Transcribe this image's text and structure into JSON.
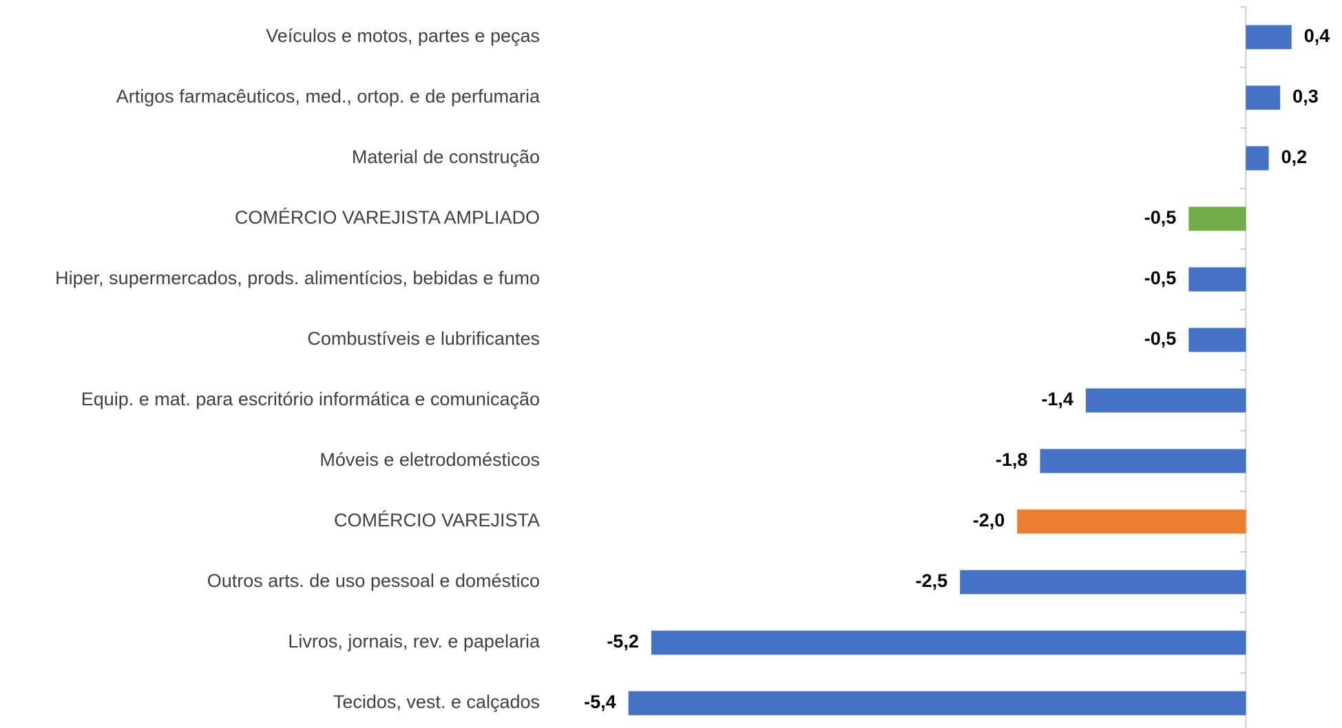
{
  "chart_data": {
    "type": "barh",
    "categories": [
      "Veículos e motos, partes e peças",
      "Artigos farmacêuticos, med., ortop. e de perfumaria",
      "Material de construção",
      "COMÉRCIO VAREJISTA AMPLIADO",
      "Hiper, supermercados, prods.  alimentícios, bebidas e fumo",
      "Combustíveis e lubrificantes",
      "Equip. e mat. para escritório informática e comunicação",
      "Móveis e eletrodomésticos",
      "COMÉRCIO VAREJISTA",
      "Outros arts. de uso pessoal e doméstico",
      "Livros, jornais, rev. e papelaria",
      "Tecidos, vest. e calçados"
    ],
    "values": [
      0.4,
      0.3,
      0.2,
      -0.5,
      -0.5,
      -0.5,
      -1.4,
      -1.8,
      -2.0,
      -2.5,
      -5.2,
      -5.4
    ],
    "value_labels": [
      "0,4",
      "0,3",
      "0,2",
      "-0,5",
      "-0,5",
      "-0,5",
      "-1,4",
      "-1,8",
      "-2,0",
      "-2,5",
      "-5,2",
      "-5,4"
    ],
    "colors": [
      "#4472c4",
      "#4472c4",
      "#4472c4",
      "#70ad47",
      "#4472c4",
      "#4472c4",
      "#4472c4",
      "#4472c4",
      "#ed7d31",
      "#4472c4",
      "#4472c4",
      "#4472c4"
    ],
    "xlim": [
      -6,
      0.6
    ]
  }
}
